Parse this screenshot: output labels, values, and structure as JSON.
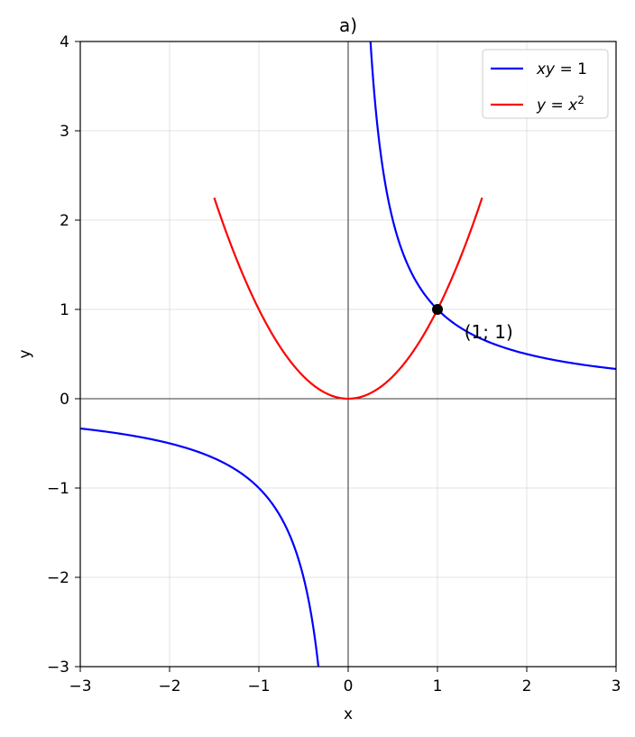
{
  "chart_data": {
    "type": "line",
    "title": "a)",
    "xlabel": "x",
    "ylabel": "y",
    "xlim": [
      -3,
      3
    ],
    "ylim": [
      -3,
      4
    ],
    "xticks": [
      -3,
      -2,
      -1,
      0,
      1,
      2,
      3
    ],
    "yticks": [
      -3,
      -2,
      -1,
      0,
      1,
      2,
      3,
      4
    ],
    "xtick_labels": [
      "−3",
      "−2",
      "−1",
      "0",
      "1",
      "2",
      "3"
    ],
    "ytick_labels": [
      "−3",
      "−2",
      "−1",
      "0",
      "1",
      "2",
      "3",
      "4"
    ],
    "grid": true,
    "legend_position": "top-right",
    "series": [
      {
        "name": "xy = 1",
        "legend_parts": [
          "xy",
          " = 1",
          ""
        ],
        "color": "#0000ff",
        "function": "1/x",
        "branches": [
          [
            -3,
            -0.333
          ],
          [
            0.25,
            3
          ]
        ]
      },
      {
        "name": "y = x²",
        "legend_parts": [
          "y",
          " = x",
          "2"
        ],
        "color": "#ff0000",
        "function": "x^2",
        "branches": [
          [
            -1.5,
            1.5
          ]
        ]
      }
    ],
    "points": [
      {
        "x": 1,
        "y": 1,
        "color": "#000000"
      }
    ],
    "annotations": [
      {
        "text": "(1; 1)",
        "x": 1.3,
        "y": 0.75
      }
    ]
  }
}
